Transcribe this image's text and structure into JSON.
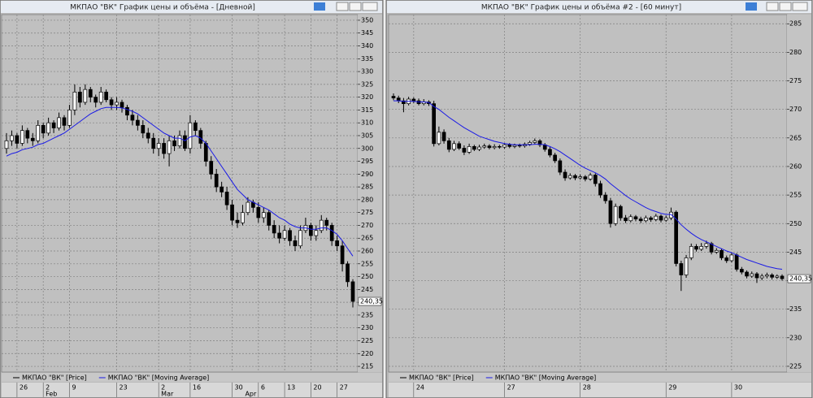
{
  "chart_data": [
    {
      "type": "candlestick",
      "title": "МКПАО \"ВК\" График цены и объёма - [Дневной]",
      "grid": true,
      "categories": [
        null,
        null,
        "26",
        null,
        null,
        null,
        null,
        "2",
        null,
        null,
        null,
        null,
        "9",
        null,
        null,
        null,
        null,
        null,
        null,
        null,
        null,
        "23",
        null,
        null,
        null,
        null,
        null,
        null,
        null,
        "2",
        null,
        null,
        null,
        null,
        null,
        "16",
        null,
        null,
        null,
        null,
        null,
        null,
        null,
        "30",
        null,
        null,
        null,
        null,
        "6",
        null,
        null,
        null,
        null,
        "13",
        null,
        null,
        null,
        null,
        "20",
        null,
        null,
        null,
        null,
        "27",
        null,
        null,
        null
      ],
      "months": [
        null,
        null,
        null,
        null,
        null,
        null,
        null,
        "Feb",
        null,
        null,
        null,
        null,
        null,
        null,
        null,
        null,
        null,
        null,
        null,
        null,
        null,
        null,
        null,
        null,
        null,
        null,
        null,
        null,
        null,
        "Mar",
        null,
        null,
        null,
        null,
        null,
        null,
        null,
        null,
        null,
        null,
        null,
        null,
        null,
        null,
        null,
        "Apr",
        null,
        null,
        null,
        null,
        null,
        null,
        null,
        null,
        null,
        null,
        null,
        null,
        null,
        null,
        null,
        null,
        null,
        null,
        null,
        null,
        null
      ],
      "ylim": [
        212.8,
        352.2
      ],
      "yticks": [
        215,
        220,
        225,
        230,
        235,
        240,
        245,
        250,
        255,
        260,
        265,
        270,
        275,
        280,
        285,
        290,
        295,
        300,
        305,
        310,
        315,
        320,
        325,
        330,
        335,
        340,
        345,
        350
      ],
      "last_price": {
        "value": 240.35,
        "label": "240,35"
      },
      "series": [
        {
          "name": "МКПАО \"ВК\" [Price]",
          "color": "#000000",
          "open": [
            300,
            303,
            305,
            302,
            307,
            304,
            303,
            309,
            306,
            310,
            308,
            312,
            309,
            315,
            322,
            318,
            323,
            320,
            318,
            322,
            319,
            317,
            318,
            316,
            313,
            311,
            309,
            306,
            304,
            300,
            302,
            298,
            303,
            301,
            305,
            300,
            310,
            307,
            302,
            295,
            290,
            285,
            283,
            278,
            272,
            271,
            275,
            279,
            277,
            273,
            275,
            270,
            267,
            265,
            268,
            264,
            262,
            268,
            270,
            266,
            268,
            272,
            270,
            264,
            262,
            255,
            248
          ],
          "high": [
            306,
            307,
            306,
            309,
            308,
            306,
            311,
            310,
            312,
            311,
            314,
            313,
            317,
            325,
            324,
            325,
            324,
            321,
            324,
            323,
            320,
            320,
            319,
            317,
            315,
            313,
            311,
            308,
            306,
            304,
            304,
            305,
            305,
            307,
            307,
            313,
            311,
            308,
            303,
            297,
            292,
            287,
            285,
            280,
            275,
            278,
            281,
            280,
            279,
            277,
            276,
            272,
            270,
            270,
            269,
            266,
            270,
            273,
            271,
            270,
            274,
            273,
            271,
            266,
            264,
            256,
            249
          ],
          "low": [
            298,
            301,
            300,
            301,
            302,
            301,
            302,
            304,
            305,
            306,
            307,
            307,
            308,
            313,
            316,
            317,
            318,
            316,
            317,
            318,
            315,
            315,
            314,
            311,
            309,
            307,
            304,
            302,
            298,
            297,
            296,
            293,
            299,
            300,
            299,
            298,
            305,
            300,
            293,
            288,
            283,
            281,
            276,
            270,
            269,
            270,
            274,
            275,
            271,
            271,
            268,
            265,
            263,
            264,
            262,
            260,
            261,
            267,
            264,
            264,
            267,
            268,
            262,
            260,
            252,
            246,
            238
          ],
          "close": [
            303,
            305,
            302,
            307,
            304,
            303,
            309,
            306,
            310,
            308,
            312,
            309,
            315,
            322,
            318,
            323,
            320,
            318,
            322,
            319,
            317,
            318,
            316,
            313,
            311,
            309,
            306,
            304,
            300,
            302,
            298,
            303,
            301,
            305,
            300,
            310,
            307,
            302,
            295,
            290,
            285,
            283,
            278,
            272,
            271,
            275,
            279,
            277,
            273,
            275,
            270,
            267,
            265,
            268,
            264,
            262,
            268,
            270,
            266,
            268,
            272,
            270,
            264,
            262,
            255,
            248,
            240.35
          ]
        },
        {
          "name": "МКПАО \"ВК\" [Moving Average]",
          "color": "#1a1ae6",
          "values": [
            297,
            298,
            298.5,
            299.5,
            300,
            300.5,
            301.5,
            302,
            303,
            304,
            305,
            306,
            307.5,
            309,
            310.5,
            312,
            313.5,
            314.5,
            315.5,
            316,
            316,
            316,
            315.8,
            315.2,
            314.5,
            313.5,
            312,
            310.5,
            309,
            307.5,
            306,
            305,
            304,
            304,
            303,
            304.5,
            305,
            304,
            302,
            299,
            296,
            293,
            290,
            287,
            284,
            282,
            280,
            279,
            278,
            277,
            276,
            274.5,
            273,
            272,
            270.5,
            269.5,
            269,
            269,
            268.5,
            268.5,
            269,
            269,
            268,
            266.5,
            264,
            261,
            258
          ]
        }
      ]
    },
    {
      "type": "candlestick",
      "title": "МКПАО \"ВК\" График цены и объёма #2 - [60 минут]",
      "grid": true,
      "categories": [
        null,
        null,
        null,
        null,
        "24",
        null,
        null,
        null,
        null,
        null,
        null,
        null,
        null,
        null,
        null,
        null,
        null,
        null,
        null,
        null,
        null,
        null,
        "27",
        null,
        null,
        null,
        null,
        null,
        null,
        null,
        null,
        null,
        null,
        null,
        null,
        null,
        null,
        "28",
        null,
        null,
        null,
        null,
        null,
        null,
        null,
        null,
        null,
        null,
        null,
        null,
        null,
        null,
        null,
        null,
        "29",
        null,
        null,
        null,
        null,
        null,
        null,
        null,
        null,
        null,
        null,
        null,
        null,
        "30",
        null,
        null,
        null,
        null,
        null,
        null,
        null,
        null,
        null,
        null
      ],
      "ylim": [
        224,
        286.6
      ],
      "yticks": [
        225,
        230,
        235,
        240,
        245,
        250,
        255,
        260,
        265,
        270,
        275,
        280,
        285
      ],
      "last_price": {
        "value": 240.35,
        "label": "240,35"
      },
      "series": [
        {
          "name": "МКПАО \"ВК\" [Price]",
          "color": "#000000",
          "open": [
            272.3,
            272,
            271.5,
            271,
            271.8,
            271.5,
            271,
            271.3,
            271,
            264,
            266,
            264.5,
            263,
            264,
            263.2,
            262.5,
            263.5,
            263,
            263.4,
            263.6,
            263.3,
            263.5,
            263.4,
            263.8,
            263.5,
            263.7,
            263.6,
            263.9,
            264.2,
            264.5,
            263.8,
            263,
            262,
            261,
            259,
            258,
            258.4,
            258,
            258.2,
            257.8,
            258.5,
            257,
            255,
            254,
            250,
            253,
            251,
            250.5,
            251.2,
            250.8,
            250.5,
            251,
            250.7,
            251.3,
            250.6,
            251,
            252,
            243,
            241,
            244,
            246,
            245.5,
            246,
            246.5,
            245,
            245.3,
            244,
            243.5,
            244.5,
            242,
            241.5,
            240.8,
            241.2,
            240.5,
            240.8,
            241,
            240.6,
            240.8
          ],
          "high": [
            272.8,
            272.4,
            272,
            272.2,
            272.1,
            271.9,
            271.8,
            271.6,
            271.5,
            267,
            266.5,
            265,
            264.5,
            264.4,
            263.7,
            264,
            263.8,
            263.8,
            264,
            263.9,
            263.9,
            263.8,
            264.1,
            264.1,
            264,
            264,
            264.2,
            264.5,
            264.9,
            264.8,
            264.1,
            263.4,
            262.4,
            261.4,
            259.5,
            258.8,
            258.7,
            258.6,
            258.5,
            258.9,
            258.8,
            257.5,
            255.5,
            254.5,
            253.5,
            253.3,
            251.5,
            251.6,
            251.5,
            251.2,
            251.4,
            251.3,
            251.7,
            251.6,
            251.4,
            252.8,
            252.3,
            243.5,
            244.5,
            246.5,
            246.4,
            246.6,
            247,
            246.8,
            245.7,
            245.6,
            244.4,
            244.9,
            244.8,
            242.4,
            241.8,
            241.6,
            241.5,
            241.2,
            241.4,
            241.3,
            241.1,
            241.1
          ],
          "low": [
            271.6,
            271.1,
            269.5,
            270.7,
            271.1,
            270.7,
            270.7,
            270.6,
            263.5,
            263.7,
            264,
            262.5,
            262.7,
            262.9,
            262,
            262.2,
            262.7,
            262.7,
            263.1,
            263,
            263,
            263.1,
            263.1,
            263.2,
            263.2,
            263.3,
            263.3,
            263.6,
            263.9,
            263.4,
            262.6,
            261.6,
            260.6,
            258.5,
            257.5,
            257.7,
            257.6,
            257.7,
            257.4,
            257.5,
            256.5,
            254.5,
            253.5,
            249.3,
            249.6,
            250.5,
            250.1,
            250.2,
            250.4,
            250.1,
            250.2,
            250.3,
            250.4,
            250.2,
            250.3,
            250.6,
            242.5,
            238.2,
            240.5,
            243.6,
            245.1,
            245.2,
            245.6,
            244.6,
            244.7,
            243.6,
            243.1,
            243.2,
            241.6,
            241.1,
            240.4,
            240.5,
            239.6,
            240.1,
            240.4,
            240.2,
            240.3,
            240
          ],
          "close": [
            272,
            271.5,
            271,
            271.8,
            271.5,
            271,
            271.3,
            271,
            264,
            266,
            264.5,
            263,
            264,
            263.2,
            262.5,
            263.5,
            263,
            263.4,
            263.6,
            263.3,
            263.5,
            263.4,
            263.8,
            263.5,
            263.7,
            263.6,
            263.9,
            264.2,
            264.5,
            263.8,
            263,
            262,
            261,
            259,
            258,
            258.4,
            258,
            258.2,
            257.8,
            258.5,
            257,
            255,
            254,
            250,
            253,
            251,
            250.5,
            251.2,
            250.8,
            250.5,
            251,
            250.7,
            251.3,
            250.6,
            251,
            252,
            243,
            241,
            244,
            246,
            245.5,
            246,
            246.5,
            245,
            245.3,
            244,
            243.5,
            244.5,
            242,
            241.5,
            240.8,
            241.2,
            240.5,
            240.8,
            241,
            240.6,
            240.8,
            240.35
          ]
        },
        {
          "name": "МКПАО \"ВК\" [Moving Average]",
          "color": "#1a1ae6",
          "values": [
            271.5,
            271.5,
            271.4,
            271.4,
            271.4,
            271.3,
            271.3,
            271.2,
            270.5,
            270,
            269.3,
            268.6,
            268,
            267.4,
            266.8,
            266.3,
            265.8,
            265.3,
            265,
            264.7,
            264.4,
            264.2,
            264,
            263.9,
            263.8,
            263.8,
            263.8,
            263.8,
            263.9,
            263.9,
            263.8,
            263.5,
            263.1,
            262.6,
            262,
            261.4,
            260.8,
            260.2,
            259.7,
            259.3,
            258.9,
            258.4,
            257.8,
            257,
            256.3,
            255.6,
            254.9,
            254.3,
            253.8,
            253.3,
            252.8,
            252.4,
            252.1,
            251.8,
            251.6,
            251.6,
            250.8,
            249.8,
            249,
            248.3,
            247.7,
            247.2,
            246.8,
            246.4,
            246,
            245.6,
            245.2,
            244.9,
            244.5,
            244.1,
            243.7,
            243.4,
            243.1,
            242.8,
            242.5,
            242.3,
            242.1,
            242
          ]
        }
      ]
    }
  ]
}
